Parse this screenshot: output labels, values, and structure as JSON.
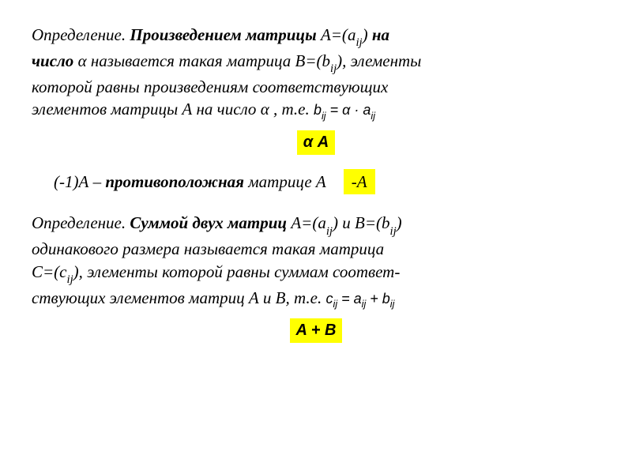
{
  "def1": {
    "label": "Определение.",
    "term": "Произведением матрицы",
    "aexpr_prefix": "А=(",
    "aexpr_a": "а",
    "aexpr_sub": "ij",
    "aexpr_suffix": ")",
    "on": "на",
    "line2_a": "число",
    "alpha": "α",
    "line2_b": "называется такая матрица В=(",
    "b_letter": "b",
    "b_sub": "ij",
    "line2_c": "), элементы",
    "line3": "которой равны произведениям соответствующих",
    "line4_a": "элементов матрицы А на число",
    "line4_sep": " , т.е.",
    "formula_b": "b",
    "formula_bsub": "ij",
    "formula_eq": " = ",
    "formula_alpha": "α",
    "formula_dot": " · ",
    "formula_a": "a",
    "formula_asub": "ij",
    "highlight1_alpha": "α",
    "highlight1_A": " A"
  },
  "opposite": {
    "prefix": "(-1)А",
    "dash": "   – ",
    "word": "противоположная",
    "suffix": " матрице А",
    "box": "-А"
  },
  "def2": {
    "label": "Определение.",
    "term": "Суммой двух матриц",
    "aexpr": "А=(",
    "a_letter": "а",
    "a_sub": "ij",
    "a_close": ")",
    "and": "и",
    "bexpr": "В=(",
    "b_letter": "b",
    "b_sub": "ij",
    "b_close": ")",
    "line2": "одинакового размера называется такая матрица",
    "line3_a": "С=(",
    "c_letter": "с",
    "c_sub": "ij",
    "line3_b": "), элементы которой равны суммам соответ-",
    "line4_a": "ствующих элементов матриц А и В, т.е.",
    "formula_c": "c",
    "formula_csub": "ij",
    "formula_eq": " = ",
    "formula_a": "a",
    "formula_asub": "ij",
    "formula_plus": " + ",
    "formula_b": "b",
    "formula_bsub": "ij",
    "highlight2": "A + B"
  },
  "colors": {
    "highlight_bg": "#ffff00",
    "text": "#000000",
    "background": "#ffffff"
  }
}
